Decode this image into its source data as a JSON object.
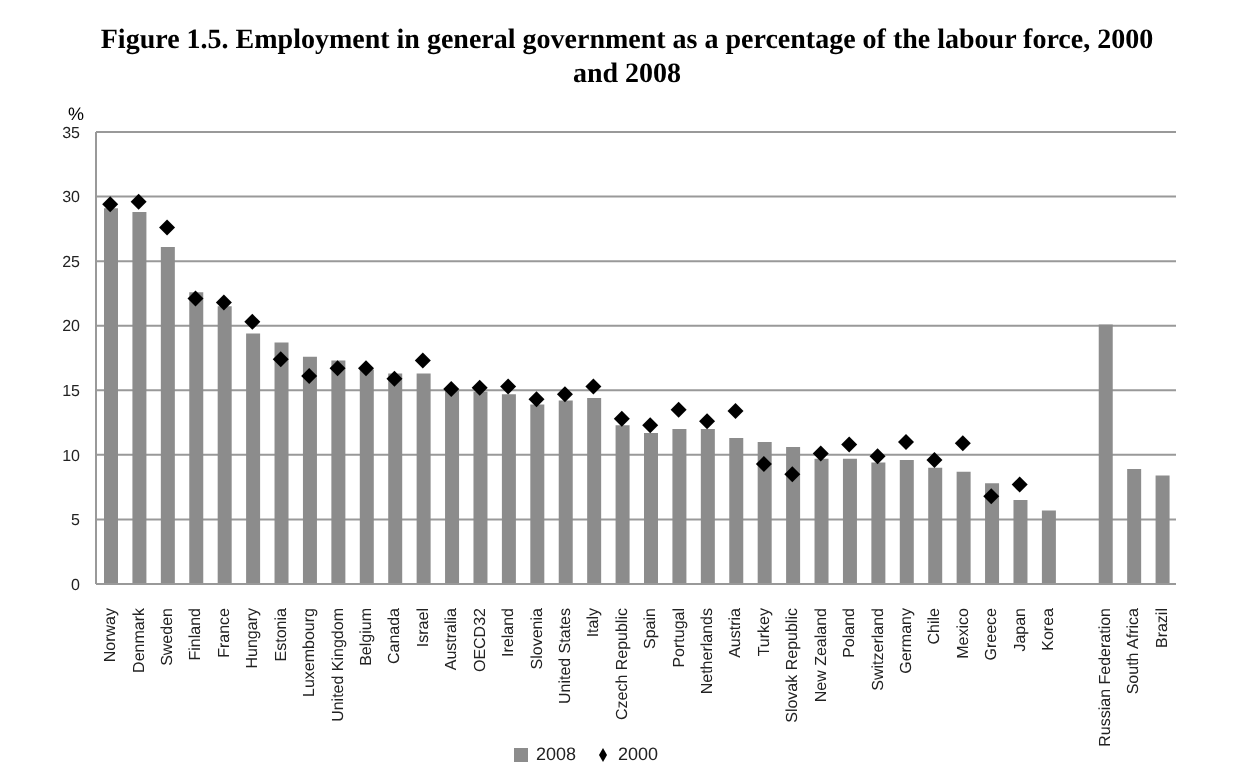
{
  "chart_data": {
    "type": "bar",
    "title": "Figure 1.5. Employment in general government as a percentage of the labour force, 2000 and 2008",
    "ylabel": "%",
    "categories": [
      "Norway",
      "Denmark",
      "Sweden",
      "Finland",
      "France",
      "Hungary",
      "Estonia",
      "Luxembourg",
      "United Kingdom",
      "Belgium",
      "Canada",
      "Israel",
      "Australia",
      "OECD32",
      "Ireland",
      "Slovenia",
      "United States",
      "Italy",
      "Czech Republic",
      "Spain",
      "Portugal",
      "Netherlands",
      "Austria",
      "Turkey",
      "Slovak Republic",
      "New Zealand",
      "Poland",
      "Switzerland",
      "Germany",
      "Chile",
      "Mexico",
      "Greece",
      "Japan",
      "Korea",
      null,
      "Russian Federation",
      "South Africa",
      "Brazil"
    ],
    "series": [
      {
        "name": "2008",
        "color": "#8c8c8c",
        "values": [
          29.1,
          28.8,
          26.1,
          22.6,
          21.5,
          19.4,
          18.7,
          17.6,
          17.3,
          16.6,
          16.3,
          16.3,
          15.0,
          14.9,
          14.7,
          13.9,
          14.2,
          14.4,
          12.3,
          11.7,
          12.0,
          12.0,
          11.3,
          11.0,
          10.6,
          9.7,
          9.7,
          9.4,
          9.6,
          9.0,
          8.7,
          7.8,
          6.5,
          5.7,
          null,
          20.1,
          8.9,
          8.4
        ]
      },
      {
        "name": "2000",
        "type": "scatter",
        "color": "#000000",
        "marker": "diamond",
        "values": [
          29.4,
          29.6,
          27.6,
          22.1,
          21.8,
          20.3,
          17.4,
          16.1,
          16.7,
          16.7,
          15.9,
          17.3,
          15.1,
          15.2,
          15.3,
          14.3,
          14.7,
          15.3,
          12.8,
          12.3,
          13.5,
          12.6,
          13.4,
          9.3,
          8.5,
          10.1,
          10.8,
          9.9,
          11.0,
          9.6,
          10.9,
          6.8,
          7.7,
          null,
          null,
          null,
          null,
          null
        ]
      }
    ],
    "ylim": [
      0,
      35
    ],
    "yticks": [
      0,
      5,
      10,
      15,
      20,
      25,
      30,
      35
    ],
    "grid": "y",
    "legend": "bottom"
  }
}
